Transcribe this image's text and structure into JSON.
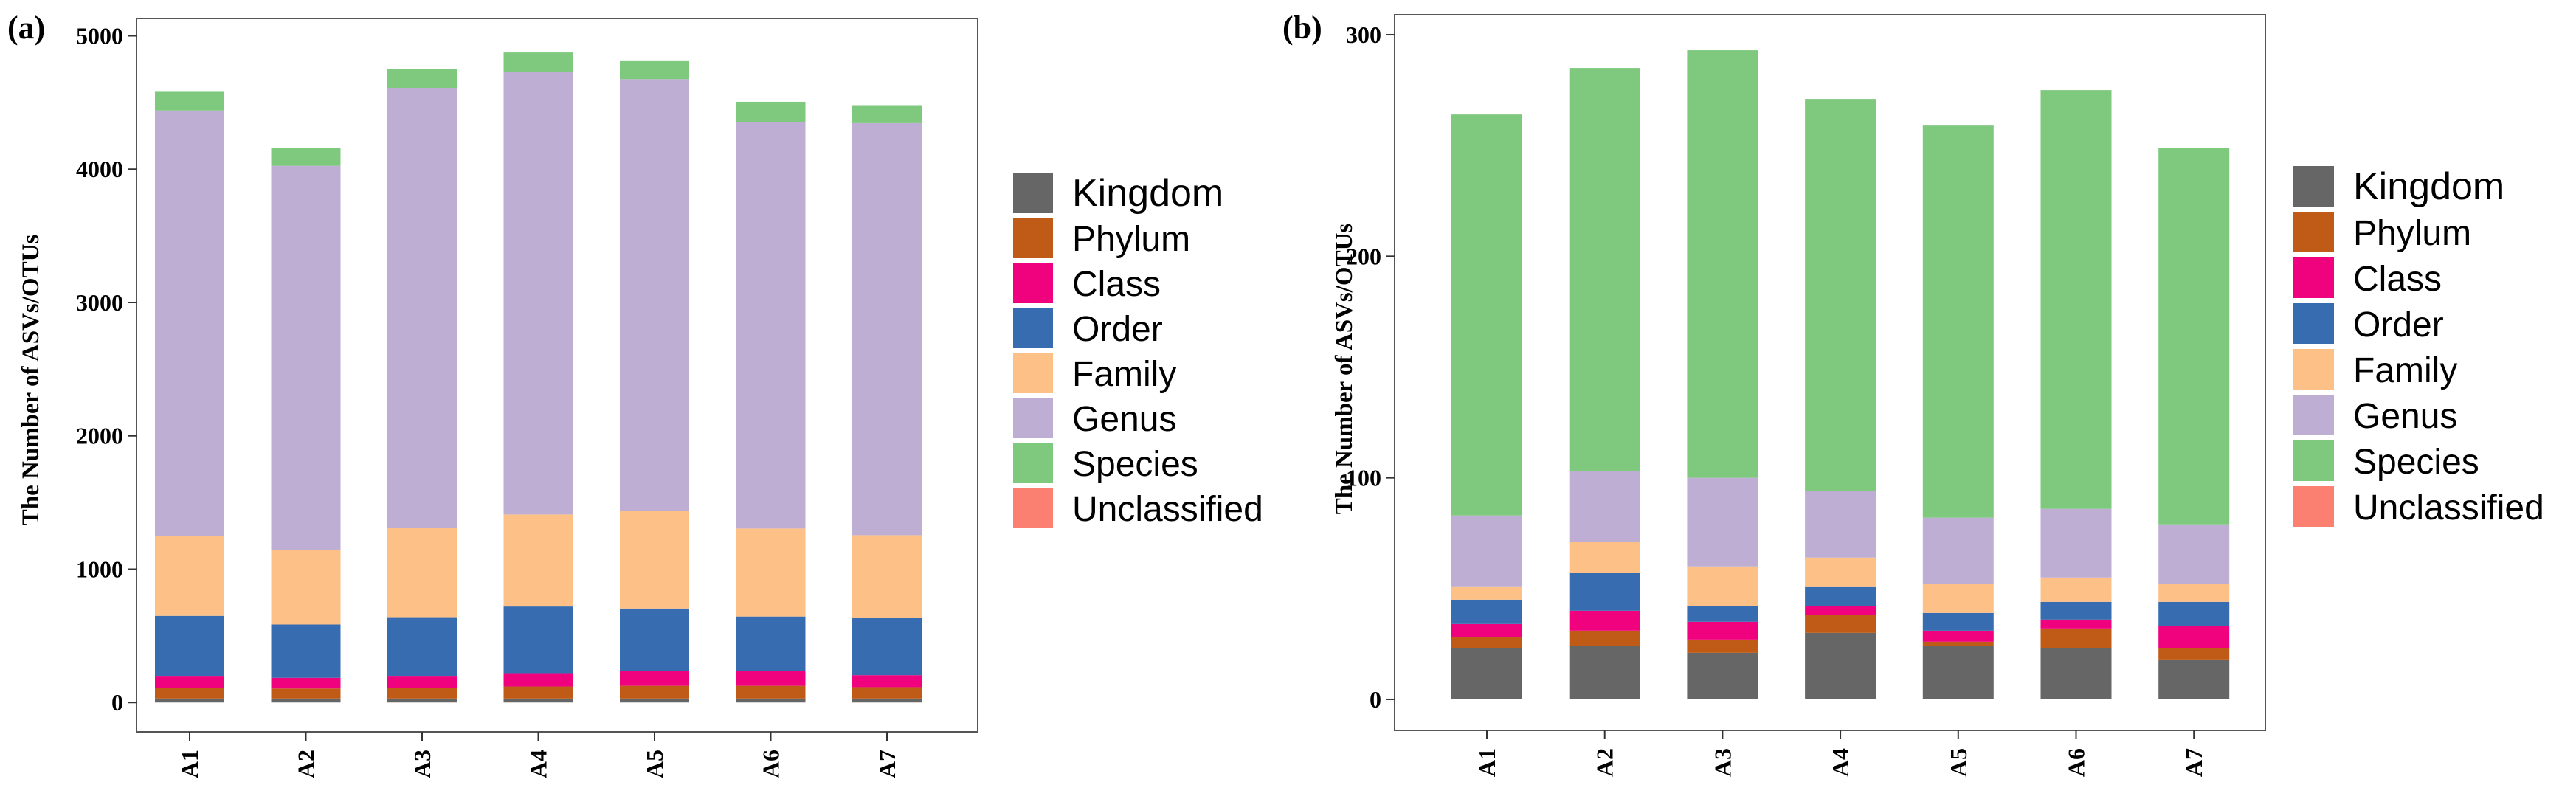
{
  "categories_colors": {
    "Kingdom": "#666666",
    "Phylum": "#bf5b17",
    "Class": "#f0027f",
    "Order": "#386cb0",
    "Family": "#fdc086",
    "Genus": "#beaed4",
    "Species": "#7fc97f",
    "Unclassified": "#fb8072"
  },
  "chart_data": [
    {
      "type": "bar",
      "stacked": true,
      "panel_label": "(a)",
      "ylabel": "The Number of ASVs/OTUs",
      "categories": [
        "A1",
        "A2",
        "A3",
        "A4",
        "A5",
        "A6",
        "A7"
      ],
      "ylim": [
        -220,
        5130
      ],
      "yticks": [
        0,
        1000,
        2000,
        3000,
        4000,
        5000
      ],
      "legend": [
        "Kingdom",
        "Phylum",
        "Class",
        "Order",
        "Family",
        "Genus",
        "Species",
        "Unclassified"
      ],
      "series": [
        {
          "name": "Kingdom",
          "values": [
            30,
            30,
            30,
            30,
            30,
            30,
            30
          ]
        },
        {
          "name": "Phylum",
          "values": [
            80,
            75,
            80,
            90,
            95,
            95,
            85
          ]
        },
        {
          "name": "Class",
          "values": [
            90,
            80,
            90,
            100,
            110,
            110,
            90
          ]
        },
        {
          "name": "Order",
          "values": [
            450,
            400,
            440,
            500,
            470,
            410,
            430
          ]
        },
        {
          "name": "Family",
          "values": [
            600,
            560,
            670,
            690,
            730,
            660,
            620
          ]
        },
        {
          "name": "Genus",
          "values": [
            3190,
            2880,
            3300,
            3320,
            3240,
            3050,
            3090
          ]
        },
        {
          "name": "Species",
          "values": [
            140,
            135,
            140,
            145,
            135,
            150,
            135
          ]
        },
        {
          "name": "Unclassified",
          "values": [
            0,
            0,
            0,
            0,
            0,
            0,
            0
          ]
        }
      ]
    },
    {
      "type": "bar",
      "stacked": true,
      "panel_label": "(b)",
      "ylabel": "The Number of ASVs/OTUs",
      "categories": [
        "A1",
        "A2",
        "A3",
        "A4",
        "A5",
        "A6",
        "A7"
      ],
      "ylim": [
        -14,
        309
      ],
      "yticks": [
        0,
        100,
        200,
        300
      ],
      "legend": [
        "Kingdom",
        "Phylum",
        "Class",
        "Order",
        "Family",
        "Genus",
        "Species",
        "Unclassified"
      ],
      "series": [
        {
          "name": "Kingdom",
          "values": [
            23,
            24,
            21,
            30,
            24,
            23,
            18
          ]
        },
        {
          "name": "Phylum",
          "values": [
            5,
            7,
            6,
            8,
            2,
            9,
            5
          ]
        },
        {
          "name": "Class",
          "values": [
            6,
            9,
            8,
            4,
            5,
            4,
            10
          ]
        },
        {
          "name": "Order",
          "values": [
            11,
            17,
            7,
            9,
            8,
            8,
            11
          ]
        },
        {
          "name": "Family",
          "values": [
            6,
            14,
            18,
            13,
            13,
            11,
            8
          ]
        },
        {
          "name": "Genus",
          "values": [
            32,
            32,
            40,
            30,
            30,
            31,
            27
          ]
        },
        {
          "name": "Species",
          "values": [
            181,
            182,
            193,
            177,
            177,
            189,
            170
          ]
        },
        {
          "name": "Unclassified",
          "values": [
            0,
            0,
            0,
            0,
            0,
            0,
            0
          ]
        }
      ]
    }
  ]
}
